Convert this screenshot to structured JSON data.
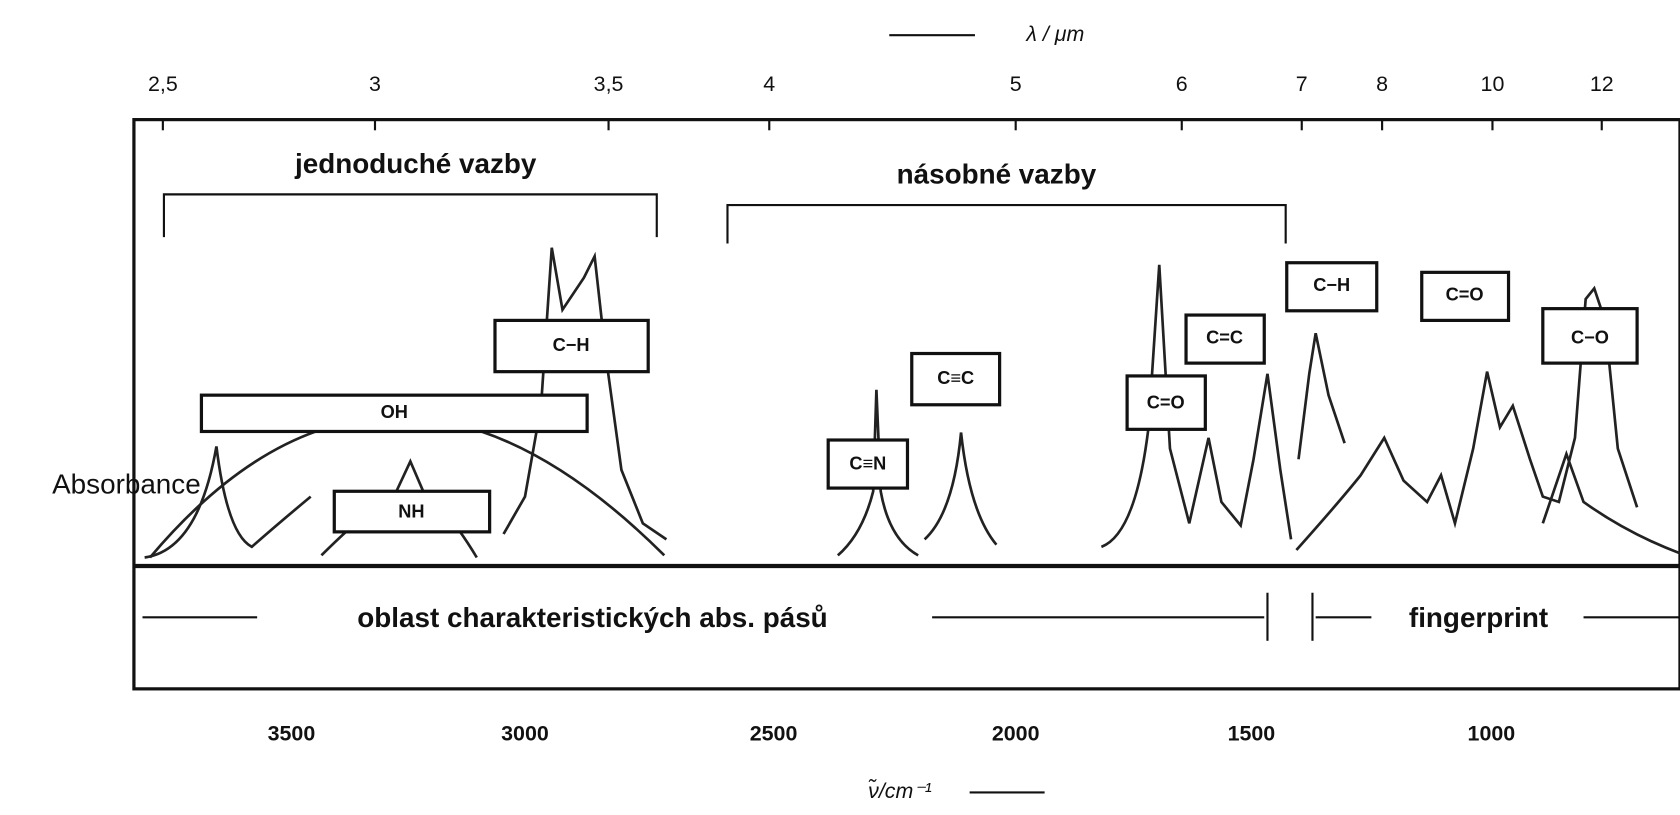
{
  "top_axis": {
    "label": "λ / μm",
    "ticks": [
      "2,5",
      "3",
      "3,5",
      "4",
      "5",
      "6",
      "7",
      "8",
      "10",
      "12"
    ]
  },
  "bottom_axis": {
    "label": "ν̃/cm⁻¹",
    "ticks": [
      "3500",
      "3000",
      "2500",
      "2000",
      "1500",
      "1000"
    ]
  },
  "y_axis_label": "Absorbance",
  "regions": {
    "single_bonds": "jednoduché vazby",
    "multiple_bonds": "násobné vazby",
    "characteristic": "oblast charakteristických abs. pásů",
    "fingerprint": "fingerprint"
  },
  "bonds": [
    "C−H",
    "OH",
    "NH",
    "C≡N",
    "C≡C",
    "C=O",
    "C=C",
    "C−H",
    "C=O",
    "C−O"
  ]
}
